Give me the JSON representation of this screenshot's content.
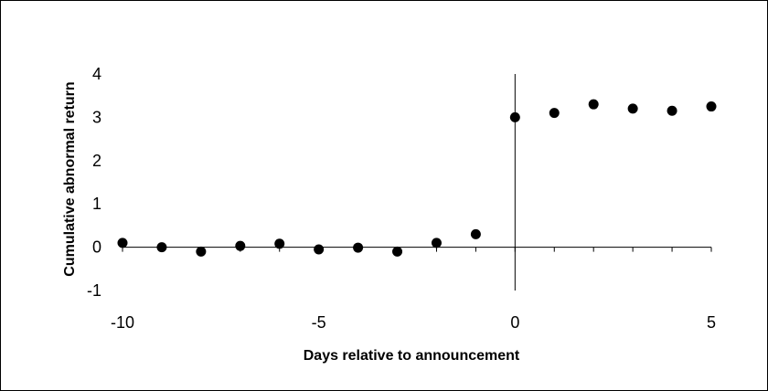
{
  "chart_data": {
    "type": "scatter",
    "title": "",
    "xlabel": "Days relative to announcement",
    "ylabel": "Cumulative abnormal return",
    "xlim": [
      -10,
      5
    ],
    "ylim": [
      -1,
      4
    ],
    "x_ticks": [
      -10,
      -5,
      0,
      5
    ],
    "y_ticks": [
      -1,
      0,
      1,
      2,
      3,
      4
    ],
    "grid": false,
    "legend": "none",
    "marker_color": "#000000",
    "points": [
      {
        "x": -10,
        "y": 0.1
      },
      {
        "x": -9,
        "y": 0.0
      },
      {
        "x": -8,
        "y": -0.1
      },
      {
        "x": -7,
        "y": 0.03
      },
      {
        "x": -6,
        "y": 0.08
      },
      {
        "x": -5,
        "y": -0.05
      },
      {
        "x": -4,
        "y": -0.01
      },
      {
        "x": -3,
        "y": -0.1
      },
      {
        "x": -2,
        "y": 0.1
      },
      {
        "x": -1,
        "y": 0.3
      },
      {
        "x": 0,
        "y": 3.0
      },
      {
        "x": 1,
        "y": 3.1
      },
      {
        "x": 2,
        "y": 3.3
      },
      {
        "x": 3,
        "y": 3.2
      },
      {
        "x": 4,
        "y": 3.15
      },
      {
        "x": 5,
        "y": 3.25
      }
    ]
  }
}
